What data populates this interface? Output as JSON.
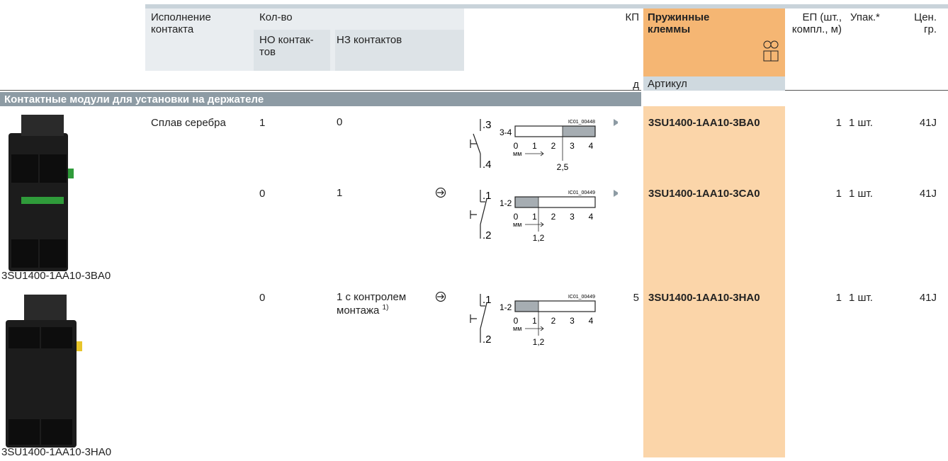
{
  "header": {
    "execution": "Исполнение контакта",
    "quantity": "Кол-во",
    "no_contacts": "НО контак-тов",
    "nc_contacts": "НЗ контактов",
    "kp": "КП",
    "spring_terminals": "Пружинные клеммы",
    "ep": "ЕП (шт., компл., м)",
    "pack": "Упак.*",
    "price_group": "Цен. гр.",
    "d": "д",
    "article": "Артикул"
  },
  "section": {
    "title": "Контактные модули для установки на держателе"
  },
  "rows": [
    {
      "contact_material": "Сплав серебра",
      "no": "1",
      "nc": "0",
      "terminal_top": ".3",
      "terminal_bottom": ".4",
      "diagram": {
        "code": "IC01_00448",
        "range": "3-4",
        "scale": [
          "0",
          "1",
          "2",
          "3",
          "4"
        ],
        "unit": "мм",
        "value": "2,5"
      },
      "article": "3SU1400-1AA10-3BA0",
      "ep": "1",
      "pack": "1 шт.",
      "price_group": "41J"
    },
    {
      "no": "0",
      "nc": "1",
      "terminal_top": ".1",
      "terminal_bottom": ".2",
      "diagram": {
        "code": "IC01_00449",
        "range": "1-2",
        "scale": [
          "0",
          "1",
          "2",
          "3",
          "4"
        ],
        "unit": "мм",
        "value": "1,2"
      },
      "article": "3SU1400-1AA10-3CA0",
      "ep": "1",
      "pack": "1 шт.",
      "price_group": "41J"
    },
    {
      "no": "0",
      "nc": "1 с контролем монтажа",
      "nc_note": "1)",
      "kp": "5",
      "terminal_top": ".1",
      "terminal_bottom": ".2",
      "diagram": {
        "code": "IC01_00449",
        "range": "1-2",
        "scale": [
          "0",
          "1",
          "2",
          "3",
          "4"
        ],
        "unit": "мм",
        "value": "1,2"
      },
      "article": "3SU1400-1AA10-3HA0",
      "ep": "1",
      "pack": "1 шт.",
      "price_group": "41J"
    }
  ],
  "images": [
    {
      "caption": "3SU1400-1AA10-3BA0"
    },
    {
      "caption": "3SU1400-1AA10-3HA0"
    }
  ]
}
